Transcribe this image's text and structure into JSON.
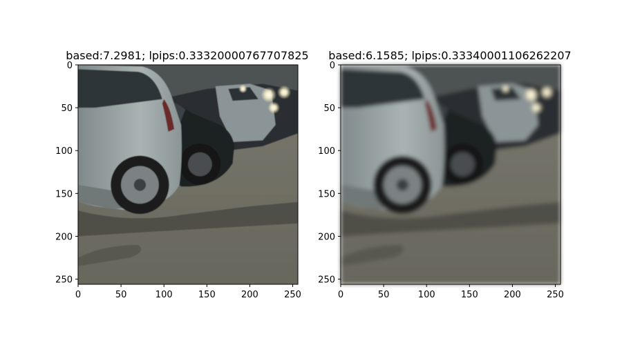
{
  "panels": [
    {
      "title": "based:7.2981; lpips:0.33320000767707825",
      "image_description": "sharp street photo of a parked silver SUV rear with dark cars and bright headlights behind on asphalt",
      "x_ticks": [
        "0",
        "50",
        "100",
        "150",
        "200",
        "250"
      ],
      "y_ticks": [
        "0",
        "50",
        "100",
        "150",
        "200",
        "250"
      ],
      "axis_range": [
        0,
        256
      ]
    },
    {
      "title": "based:6.1585; lpips:0.33340001106262207",
      "image_description": "blurred reconstruction of the same parked cars scene",
      "x_ticks": [
        "0",
        "50",
        "100",
        "150",
        "200",
        "250"
      ],
      "y_ticks": [
        "0",
        "50",
        "100",
        "150",
        "200",
        "250"
      ],
      "axis_range": [
        0,
        256
      ]
    }
  ],
  "colors": {
    "asphalt": "#6d6c62",
    "shadow": "#46463f",
    "car_silver": "#9aa3a3",
    "car_dark": "#1e2022",
    "glare": "#fff6d8"
  }
}
